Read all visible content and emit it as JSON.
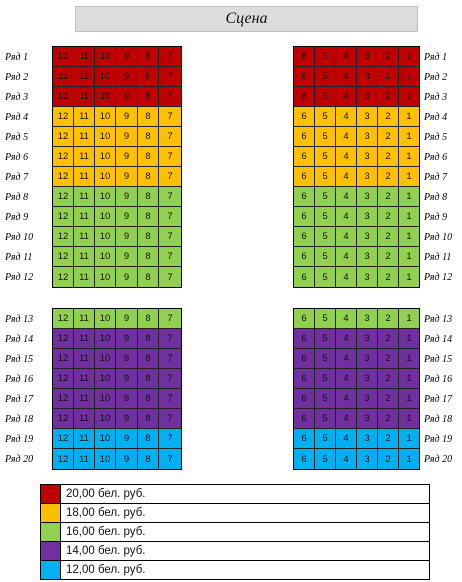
{
  "stage": {
    "label": "Сцена"
  },
  "colors": {
    "p20": "#c00000",
    "p18": "#ffc000",
    "p16": "#92d050",
    "p14": "#7030a0",
    "p12": "#00b0f0"
  },
  "sections": [
    {
      "rows": [
        {
          "label": "Ряд 1",
          "price": "p20"
        },
        {
          "label": "Ряд 2",
          "price": "p20"
        },
        {
          "label": "Ряд 3",
          "price": "p20"
        },
        {
          "label": "Ряд 4",
          "price": "p18"
        },
        {
          "label": "Ряд 5",
          "price": "p18"
        },
        {
          "label": "Ряд 6",
          "price": "p18"
        },
        {
          "label": "Ряд 7",
          "price": "p18"
        },
        {
          "label": "Ряд 8",
          "price": "p16"
        },
        {
          "label": "Ряд 9",
          "price": "p16"
        },
        {
          "label": "Ряд 10",
          "price": "p16"
        },
        {
          "label": "Ряд 11",
          "price": "p16"
        },
        {
          "label": "Ряд 12",
          "price": "p16"
        }
      ]
    },
    {
      "rows": [
        {
          "label": "Ряд 13",
          "price": "p16"
        },
        {
          "label": "Ряд 14",
          "price": "p14"
        },
        {
          "label": "Ряд 15",
          "price": "p14"
        },
        {
          "label": "Ряд 16",
          "price": "p14"
        },
        {
          "label": "Ряд 17",
          "price": "p14"
        },
        {
          "label": "Ряд 18",
          "price": "p14"
        },
        {
          "label": "Ряд 19",
          "price": "p12"
        },
        {
          "label": "Ряд 20",
          "price": "p12"
        }
      ]
    }
  ],
  "left_seats": [
    "12",
    "11",
    "10",
    "9",
    "8",
    "7"
  ],
  "right_seats": [
    "6",
    "5",
    "4",
    "3",
    "2",
    "1"
  ],
  "legend": [
    {
      "price": "p20",
      "text": "20,00 бел. руб."
    },
    {
      "price": "p18",
      "text": "18,00 бел. руб."
    },
    {
      "price": "p16",
      "text": "16,00 бел. руб."
    },
    {
      "price": "p14",
      "text": "14,00 бел. руб."
    },
    {
      "price": "p12",
      "text": "12,00 бел. руб."
    }
  ]
}
